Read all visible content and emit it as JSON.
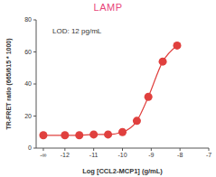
{
  "chart_data": {
    "type": "scatter",
    "title": "LAMP",
    "annotation": "LOD: 12 pg/mL",
    "x_label": "Log [CCL2-MCP1] (g/mL)",
    "y_label": "TR-FRET ratio (665/615 * 1000)",
    "x": [
      -12.75,
      -12,
      -11.5,
      -11,
      -10.5,
      -10,
      -9.5,
      -9.1,
      -8.6,
      -8.1
    ],
    "values": [
      8,
      8,
      8,
      8.5,
      8.5,
      10,
      17,
      32,
      54,
      64
    ],
    "color": "#e0403e",
    "marker": "circle",
    "line_style": "solid",
    "xlim": [
      -13,
      -7
    ],
    "xticks": [
      {
        "value": -12.75,
        "label": "-∞"
      },
      -12,
      -11,
      -10,
      -9,
      -8,
      -7
    ],
    "ylim": [
      0,
      80
    ],
    "yticks": [
      0,
      20,
      40,
      60,
      80
    ],
    "grid": false
  }
}
